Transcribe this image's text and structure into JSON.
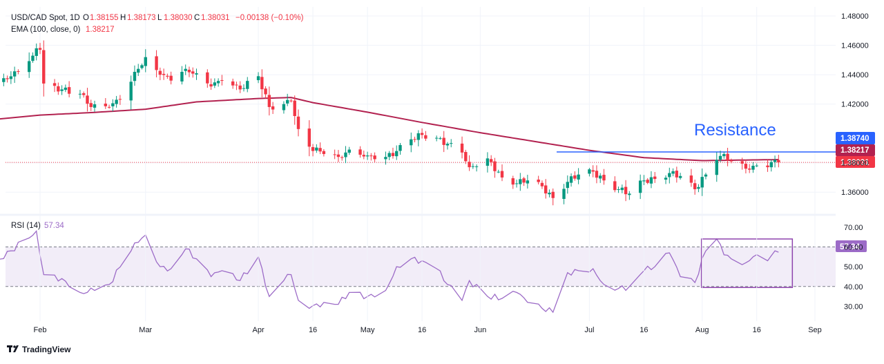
{
  "header": {
    "symbol": "USD/CAD Spot, 1D",
    "o_label": "O",
    "o_value": "1.38155",
    "h_label": "H",
    "h_value": "1.38173",
    "l_label": "L",
    "l_value": "1.38030",
    "c_label": "C",
    "c_value": "1.38031",
    "change": "−0.00138 (−0.10%)",
    "ema_label": "EMA (100, close, 0)",
    "ema_value": "1.38217"
  },
  "rsi_header": {
    "label": "RSI (14)",
    "value": "57.34"
  },
  "annotation": {
    "resistance_text": "Resistance"
  },
  "price_tags": {
    "resistance": "1.38740",
    "ema": "1.38217",
    "last": "1.38031",
    "rsi": "57.34"
  },
  "branding": {
    "logo_text": "TradingView"
  },
  "colors": {
    "up": "#089981",
    "down": "#f23645",
    "ema": "#b2214f",
    "resistance": "#2962ff",
    "rsi": "#9c6bc7",
    "rsi_band": "#ede7f6",
    "box": "#8e44ad"
  },
  "chart_data": [
    {
      "type": "candlestick",
      "y_ticks": [
        1.48,
        1.46,
        1.44,
        1.42,
        1.38,
        1.36
      ],
      "y_tick_labels": [
        "1.48000",
        "1.46000",
        "1.44000",
        "1.42000",
        "1.38000",
        "1.36000"
      ],
      "x_tick_labels": [
        "Feb",
        "Mar",
        "Apr",
        "16",
        "May",
        "16",
        "Jun",
        "Jul",
        "16",
        "Aug",
        "16",
        "Sep"
      ],
      "x_tick_dates": [
        "2024-02-01",
        "2024-03-01",
        "2024-04-01",
        "2024-04-16",
        "2024-05-01",
        "2024-05-16",
        "2024-06-01",
        "2024-07-01",
        "2024-07-16",
        "2024-08-01",
        "2024-08-16",
        "2024-09-01"
      ],
      "ylim": [
        1.3474,
        1.4862
      ],
      "x_range": [
        "2024-01-18",
        "2024-09-09"
      ],
      "close_anchors": [
        [
          "2024-01-19",
          1.435
        ],
        [
          "2024-01-23",
          1.437
        ],
        [
          "2024-01-26",
          1.442
        ],
        [
          "2024-01-30",
          1.453
        ],
        [
          "2024-01-31",
          1.458
        ],
        [
          "2024-02-01",
          1.457
        ],
        [
          "2024-02-02",
          1.434
        ],
        [
          "2024-02-07",
          1.43
        ],
        [
          "2024-02-12",
          1.427
        ],
        [
          "2024-02-15",
          1.418
        ],
        [
          "2024-02-20",
          1.418
        ],
        [
          "2024-02-23",
          1.423
        ],
        [
          "2024-02-28",
          1.444
        ],
        [
          "2024-03-01",
          1.452
        ],
        [
          "2024-03-05",
          1.44
        ],
        [
          "2024-03-08",
          1.436
        ],
        [
          "2024-03-12",
          1.444
        ],
        [
          "2024-03-15",
          1.441
        ],
        [
          "2024-03-19",
          1.432
        ],
        [
          "2024-03-22",
          1.436
        ],
        [
          "2024-03-27",
          1.43
        ],
        [
          "2024-04-01",
          1.439
        ],
        [
          "2024-04-04",
          1.418
        ],
        [
          "2024-04-08",
          1.42
        ],
        [
          "2024-04-10",
          1.422
        ],
        [
          "2024-04-12",
          1.403
        ],
        [
          "2024-04-15",
          1.391
        ],
        [
          "2024-04-19",
          1.386
        ],
        [
          "2024-04-23",
          1.384
        ],
        [
          "2024-04-26",
          1.389
        ],
        [
          "2024-05-01",
          1.385
        ],
        [
          "2024-05-06",
          1.384
        ],
        [
          "2024-05-09",
          1.388
        ],
        [
          "2024-05-13",
          1.396
        ],
        [
          "2024-05-16",
          1.399
        ],
        [
          "2024-05-20",
          1.397
        ],
        [
          "2024-05-23",
          1.393
        ],
        [
          "2024-05-27",
          1.387
        ],
        [
          "2024-05-29",
          1.377
        ],
        [
          "2024-06-03",
          1.383
        ],
        [
          "2024-06-07",
          1.37
        ],
        [
          "2024-06-11",
          1.366
        ],
        [
          "2024-06-14",
          1.368
        ],
        [
          "2024-06-18",
          1.364
        ],
        [
          "2024-06-21",
          1.356
        ],
        [
          "2024-06-25",
          1.367
        ],
        [
          "2024-06-28",
          1.372
        ],
        [
          "2024-07-02",
          1.374
        ],
        [
          "2024-07-05",
          1.368
        ],
        [
          "2024-07-09",
          1.362
        ],
        [
          "2024-07-12",
          1.359
        ],
        [
          "2024-07-16",
          1.368
        ],
        [
          "2024-07-19",
          1.369
        ],
        [
          "2024-07-23",
          1.373
        ],
        [
          "2024-07-26",
          1.371
        ],
        [
          "2024-07-30",
          1.362
        ],
        [
          "2024-08-02",
          1.372
        ],
        [
          "2024-08-05",
          1.382
        ],
        [
          "2024-08-07",
          1.386
        ],
        [
          "2024-08-09",
          1.381
        ],
        [
          "2024-08-13",
          1.376
        ],
        [
          "2024-08-15",
          1.378
        ],
        [
          "2024-08-19",
          1.377
        ],
        [
          "2024-08-21",
          1.382
        ],
        [
          "2024-08-22",
          1.3803
        ]
      ],
      "series": [
        {
          "type": "line",
          "name": "EMA (100, close, 0)",
          "points": [
            [
              "2024-01-18",
              1.4092
            ],
            [
              "2024-02-01",
              1.4125
            ],
            [
              "2024-02-15",
              1.4142
            ],
            [
              "2024-03-01",
              1.4165
            ],
            [
              "2024-03-15",
              1.4215
            ],
            [
              "2024-04-01",
              1.4238
            ],
            [
              "2024-04-10",
              1.4245
            ],
            [
              "2024-04-16",
              1.421
            ],
            [
              "2024-05-01",
              1.4145
            ],
            [
              "2024-05-16",
              1.4075
            ],
            [
              "2024-06-01",
              1.4005
            ],
            [
              "2024-06-16",
              1.3945
            ],
            [
              "2024-07-01",
              1.3885
            ],
            [
              "2024-07-16",
              1.3835
            ],
            [
              "2024-08-01",
              1.3815
            ],
            [
              "2024-08-22",
              1.3822
            ]
          ]
        },
        {
          "type": "hline",
          "name": "",
          "value": 1.3874,
          "from": "2024-06-22",
          "to": "2024-09-09"
        }
      ],
      "last_price_line": 1.3803
    },
    {
      "type": "line",
      "name": "RSI (14)",
      "y_ticks": [
        70,
        60,
        50,
        40,
        30
      ],
      "y_tick_labels": [
        "70.00",
        "60.00",
        "50.00",
        "40.00",
        "30.00"
      ],
      "ylim": [
        22.5,
        75.5
      ],
      "band": [
        40,
        60
      ],
      "points": [
        [
          "2024-01-18",
          51
        ],
        [
          "2024-01-24",
          58
        ],
        [
          "2024-01-31",
          68
        ],
        [
          "2024-02-02",
          46
        ],
        [
          "2024-02-07",
          44
        ],
        [
          "2024-02-12",
          37
        ],
        [
          "2024-02-16",
          38
        ],
        [
          "2024-02-20",
          41
        ],
        [
          "2024-02-27",
          62
        ],
        [
          "2024-03-01",
          66
        ],
        [
          "2024-03-05",
          50
        ],
        [
          "2024-03-08",
          49
        ],
        [
          "2024-03-12",
          59
        ],
        [
          "2024-03-15",
          54
        ],
        [
          "2024-03-19",
          45
        ],
        [
          "2024-03-22",
          48
        ],
        [
          "2024-03-27",
          43
        ],
        [
          "2024-04-01",
          55
        ],
        [
          "2024-04-04",
          35
        ],
        [
          "2024-04-08",
          43
        ],
        [
          "2024-04-10",
          46
        ],
        [
          "2024-04-12",
          33
        ],
        [
          "2024-04-15",
          29
        ],
        [
          "2024-04-19",
          32
        ],
        [
          "2024-04-23",
          31
        ],
        [
          "2024-04-26",
          37
        ],
        [
          "2024-05-01",
          35
        ],
        [
          "2024-05-06",
          38
        ],
        [
          "2024-05-09",
          50
        ],
        [
          "2024-05-13",
          54
        ],
        [
          "2024-05-16",
          53
        ],
        [
          "2024-05-20",
          49
        ],
        [
          "2024-05-23",
          41
        ],
        [
          "2024-05-27",
          33
        ],
        [
          "2024-05-29",
          43
        ],
        [
          "2024-06-03",
          35
        ],
        [
          "2024-06-07",
          34
        ],
        [
          "2024-06-11",
          37
        ],
        [
          "2024-06-14",
          32
        ],
        [
          "2024-06-18",
          29
        ],
        [
          "2024-06-21",
          27
        ],
        [
          "2024-06-25",
          47
        ],
        [
          "2024-06-28",
          48
        ],
        [
          "2024-07-02",
          49
        ],
        [
          "2024-07-05",
          41
        ],
        [
          "2024-07-09",
          39
        ],
        [
          "2024-07-12",
          40
        ],
        [
          "2024-07-16",
          48
        ],
        [
          "2024-07-19",
          50
        ],
        [
          "2024-07-23",
          57
        ],
        [
          "2024-07-26",
          45
        ],
        [
          "2024-07-30",
          42
        ],
        [
          "2024-08-02",
          58
        ],
        [
          "2024-08-05",
          64
        ],
        [
          "2024-08-07",
          56
        ],
        [
          "2024-08-09",
          54
        ],
        [
          "2024-08-13",
          52
        ],
        [
          "2024-08-15",
          55
        ],
        [
          "2024-08-19",
          53
        ],
        [
          "2024-08-21",
          58
        ],
        [
          "2024-08-22",
          57.34
        ]
      ]
    }
  ]
}
